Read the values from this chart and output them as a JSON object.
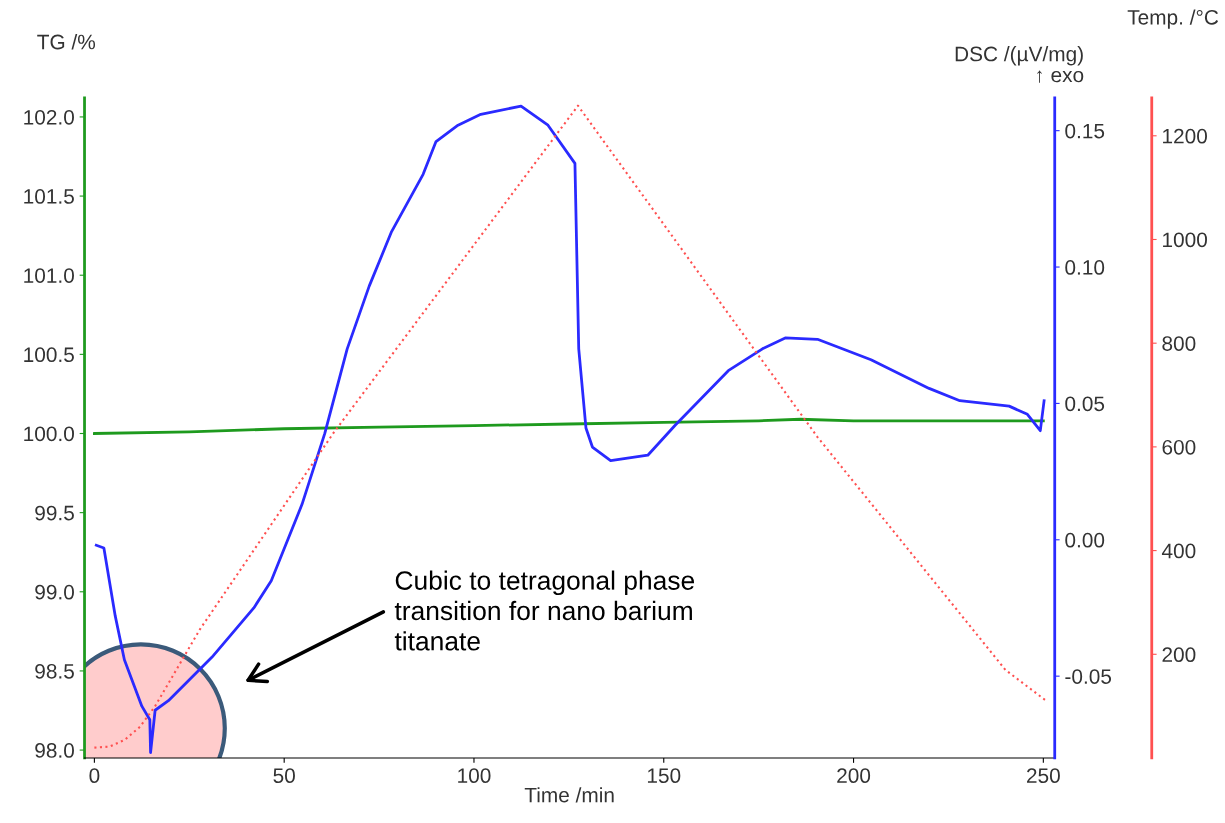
{
  "chart_data": {
    "type": "line",
    "xlabel": "Time /min",
    "ylabel": "TG /%",
    "y2label": "DSC /(µV/mg)\n↑ exo",
    "y3label": "Temp. /°C",
    "xlim": [
      -2.6,
      253
    ],
    "xticks": [
      0,
      50,
      100,
      150,
      200,
      250
    ],
    "ylim": [
      97.95,
      102.12
    ],
    "yticks": [
      {
        "value": 98,
        "label": "98.0"
      },
      98.5,
      {
        "value": 99,
        "label": "99.0"
      },
      99.5,
      {
        "value": 100,
        "label": "100.0"
      },
      100.5,
      {
        "value": 101,
        "label": "101.0"
      },
      101.5,
      {
        "value": 102,
        "label": "102.0"
      }
    ],
    "y2lim": [
      -0.08,
      0.162
    ],
    "y2ticks": [
      {
        "value": -0.05,
        "label": "-0.05"
      },
      {
        "value": 0,
        "label": "0.00"
      },
      {
        "value": 0.05,
        "label": "0.05"
      },
      {
        "value": 0.1,
        "label": "0.10"
      },
      {
        "value": 0.15,
        "label": "0.15"
      }
    ],
    "y3lim": [
      0,
      1273
    ],
    "y3ticks": [
      200,
      400,
      600,
      800,
      1000,
      1200
    ],
    "grid": false,
    "legend": false,
    "marker": "none",
    "annotations": [
      "Cubic to tetragonal phase\ntransition for nano barium\ntitanate"
    ],
    "series": [
      {
        "axis": "y",
        "color": "#1e9a1e",
        "line_style": "solid",
        "x": [
          0,
          25,
          50,
          75,
          100,
          125,
          150,
          175,
          186,
          200,
          225,
          250
        ],
        "values": [
          100.0,
          100.01,
          100.03,
          100.04,
          100.05,
          100.06,
          100.07,
          100.08,
          100.09,
          100.08,
          100.08,
          100.08
        ]
      },
      {
        "axis": "y3",
        "color": "#ff5050",
        "line_style": "dotted",
        "x": [
          0,
          4,
          8,
          12,
          16,
          27.8,
          63,
          127.4,
          190.5,
          240,
          251
        ],
        "values": [
          20,
          22,
          35,
          60,
          100,
          248,
          627,
          1258,
          619,
          170,
          109
        ]
      },
      {
        "axis": "y2",
        "color": "#2a2aff",
        "line_style": "solid",
        "x": [
          0.5,
          2.5,
          5.5,
          7.9,
          12.5,
          14.6,
          14.8,
          16,
          19.5,
          31,
          42,
          46.6,
          54.7,
          60.7,
          66.6,
          72.4,
          78.3,
          86.6,
          90,
          95.8,
          101.8,
          112.4,
          119.5,
          126.6,
          127.6,
          129.5,
          131.2,
          136,
          145.8,
          153,
          167,
          176,
          182,
          190.5,
          204.6,
          219.9,
          228,
          241,
          245.8,
          249.2,
          250.2
        ],
        "values": [
          -0.002,
          -0.003,
          -0.028,
          -0.044,
          -0.061,
          -0.066,
          -0.078,
          -0.0625,
          -0.059,
          -0.043,
          -0.025,
          -0.015,
          0.013,
          0.039,
          0.07,
          0.093,
          0.113,
          0.134,
          0.146,
          0.152,
          0.156,
          0.159,
          0.152,
          0.138,
          0.07,
          0.041,
          0.034,
          0.029,
          0.031,
          0.042,
          0.062,
          0.07,
          0.074,
          0.0735,
          0.066,
          0.0555,
          0.051,
          0.049,
          0.046,
          0.04,
          0.051
        ]
      }
    ]
  }
}
